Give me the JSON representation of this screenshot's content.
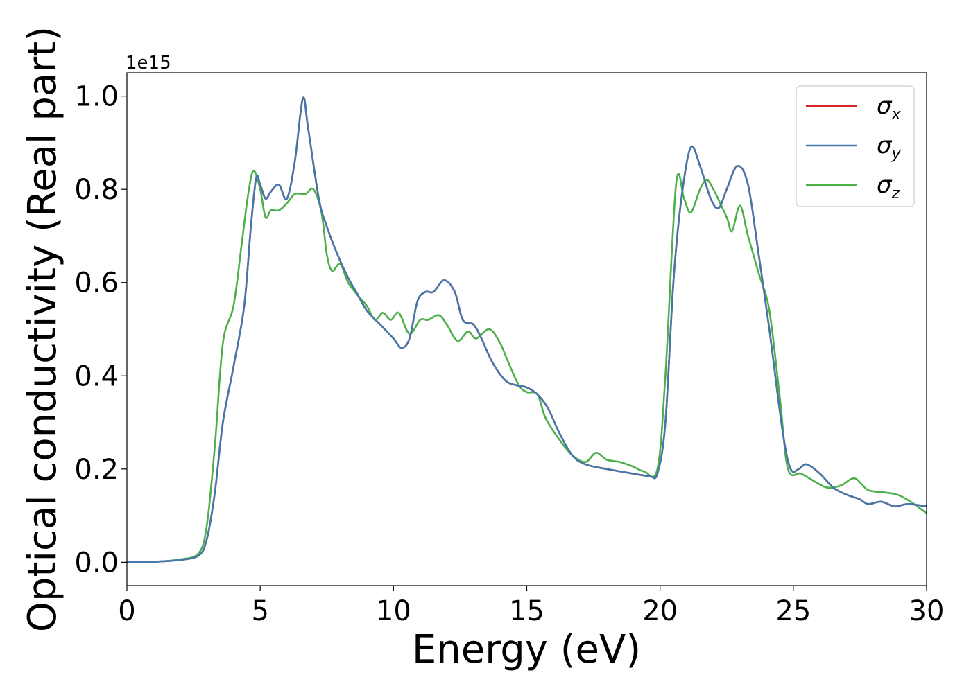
{
  "chart_data": {
    "type": "line",
    "title": "",
    "xlabel": "Energy (eV)",
    "ylabel": "Optical conductivity (Real part)",
    "y_offset_label": "1e15",
    "xlim": [
      0,
      30
    ],
    "ylim": [
      -0.05,
      1.05
    ],
    "x_ticks": [
      0,
      5,
      10,
      15,
      20,
      25,
      30
    ],
    "y_ticks": [
      0.0,
      0.2,
      0.4,
      0.6,
      0.8,
      1.0
    ],
    "x_tick_labels": [
      "0",
      "5",
      "10",
      "15",
      "20",
      "25",
      "30"
    ],
    "y_tick_labels": [
      "0.0",
      "0.2",
      "0.4",
      "0.6",
      "0.8",
      "1.0"
    ],
    "grid": false,
    "legend_position": "top-right",
    "colors": {
      "sigma_x": "#d62728",
      "sigma_y": "#4477aa",
      "sigma_z": "#4daf4a"
    },
    "series": [
      {
        "name": "σx",
        "symbol": "σ",
        "subscript": "x",
        "color": "#d62728",
        "points": [
          [
            0,
            0
          ],
          [
            1,
            0.001
          ],
          [
            2,
            0.005
          ],
          [
            2.7,
            0.015
          ],
          [
            3.0,
            0.05
          ],
          [
            3.3,
            0.15
          ],
          [
            3.6,
            0.3
          ],
          [
            4.0,
            0.42
          ],
          [
            4.4,
            0.55
          ],
          [
            4.65,
            0.72
          ],
          [
            4.85,
            0.825
          ],
          [
            5.0,
            0.81
          ],
          [
            5.2,
            0.78
          ],
          [
            5.4,
            0.795
          ],
          [
            5.7,
            0.81
          ],
          [
            6.0,
            0.78
          ],
          [
            6.3,
            0.86
          ],
          [
            6.6,
            0.995
          ],
          [
            6.8,
            0.93
          ],
          [
            7.2,
            0.78
          ],
          [
            7.5,
            0.72
          ],
          [
            7.9,
            0.66
          ],
          [
            8.3,
            0.61
          ],
          [
            8.6,
            0.58
          ],
          [
            9.0,
            0.54
          ],
          [
            9.5,
            0.51
          ],
          [
            10.0,
            0.48
          ],
          [
            10.3,
            0.46
          ],
          [
            10.6,
            0.48
          ],
          [
            10.9,
            0.56
          ],
          [
            11.2,
            0.58
          ],
          [
            11.5,
            0.58
          ],
          [
            11.9,
            0.605
          ],
          [
            12.3,
            0.58
          ],
          [
            12.6,
            0.52
          ],
          [
            13.0,
            0.51
          ],
          [
            13.3,
            0.48
          ],
          [
            13.7,
            0.43
          ],
          [
            14.2,
            0.39
          ],
          [
            14.6,
            0.38
          ],
          [
            15.0,
            0.375
          ],
          [
            15.4,
            0.36
          ],
          [
            15.8,
            0.33
          ],
          [
            16.2,
            0.28
          ],
          [
            16.7,
            0.23
          ],
          [
            17.2,
            0.21
          ],
          [
            18.0,
            0.2
          ],
          [
            19.0,
            0.19
          ],
          [
            19.6,
            0.185
          ],
          [
            19.9,
            0.19
          ],
          [
            20.2,
            0.3
          ],
          [
            20.5,
            0.6
          ],
          [
            20.8,
            0.78
          ],
          [
            21.15,
            0.89
          ],
          [
            21.5,
            0.85
          ],
          [
            21.9,
            0.78
          ],
          [
            22.2,
            0.76
          ],
          [
            22.5,
            0.8
          ],
          [
            22.9,
            0.85
          ],
          [
            23.3,
            0.81
          ],
          [
            23.7,
            0.66
          ],
          [
            24.1,
            0.5
          ],
          [
            24.6,
            0.28
          ],
          [
            24.9,
            0.2
          ],
          [
            25.2,
            0.2
          ],
          [
            25.5,
            0.21
          ],
          [
            26.0,
            0.19
          ],
          [
            26.5,
            0.16
          ],
          [
            27.0,
            0.145
          ],
          [
            27.5,
            0.135
          ],
          [
            27.8,
            0.125
          ],
          [
            28.3,
            0.13
          ],
          [
            28.8,
            0.12
          ],
          [
            29.3,
            0.125
          ],
          [
            30.0,
            0.12
          ]
        ]
      },
      {
        "name": "σy",
        "symbol": "σ",
        "subscript": "y",
        "color": "#4477aa",
        "points": [
          [
            0,
            0
          ],
          [
            1,
            0.001
          ],
          [
            2,
            0.005
          ],
          [
            2.7,
            0.015
          ],
          [
            3.0,
            0.05
          ],
          [
            3.3,
            0.15
          ],
          [
            3.6,
            0.3
          ],
          [
            4.0,
            0.42
          ],
          [
            4.4,
            0.55
          ],
          [
            4.65,
            0.72
          ],
          [
            4.85,
            0.825
          ],
          [
            5.0,
            0.81
          ],
          [
            5.2,
            0.78
          ],
          [
            5.4,
            0.795
          ],
          [
            5.7,
            0.81
          ],
          [
            6.0,
            0.78
          ],
          [
            6.3,
            0.86
          ],
          [
            6.6,
            0.995
          ],
          [
            6.8,
            0.93
          ],
          [
            7.2,
            0.78
          ],
          [
            7.5,
            0.72
          ],
          [
            7.9,
            0.66
          ],
          [
            8.3,
            0.61
          ],
          [
            8.6,
            0.58
          ],
          [
            9.0,
            0.54
          ],
          [
            9.5,
            0.51
          ],
          [
            10.0,
            0.48
          ],
          [
            10.3,
            0.46
          ],
          [
            10.6,
            0.48
          ],
          [
            10.9,
            0.56
          ],
          [
            11.2,
            0.58
          ],
          [
            11.5,
            0.58
          ],
          [
            11.9,
            0.605
          ],
          [
            12.3,
            0.58
          ],
          [
            12.6,
            0.52
          ],
          [
            13.0,
            0.51
          ],
          [
            13.3,
            0.48
          ],
          [
            13.7,
            0.43
          ],
          [
            14.2,
            0.39
          ],
          [
            14.6,
            0.38
          ],
          [
            15.0,
            0.375
          ],
          [
            15.4,
            0.36
          ],
          [
            15.8,
            0.33
          ],
          [
            16.2,
            0.28
          ],
          [
            16.7,
            0.23
          ],
          [
            17.2,
            0.21
          ],
          [
            18.0,
            0.2
          ],
          [
            19.0,
            0.19
          ],
          [
            19.6,
            0.185
          ],
          [
            19.9,
            0.19
          ],
          [
            20.2,
            0.3
          ],
          [
            20.5,
            0.6
          ],
          [
            20.8,
            0.78
          ],
          [
            21.15,
            0.89
          ],
          [
            21.5,
            0.85
          ],
          [
            21.9,
            0.78
          ],
          [
            22.2,
            0.76
          ],
          [
            22.5,
            0.8
          ],
          [
            22.9,
            0.85
          ],
          [
            23.3,
            0.81
          ],
          [
            23.7,
            0.66
          ],
          [
            24.1,
            0.5
          ],
          [
            24.6,
            0.28
          ],
          [
            24.9,
            0.2
          ],
          [
            25.2,
            0.2
          ],
          [
            25.5,
            0.21
          ],
          [
            26.0,
            0.19
          ],
          [
            26.5,
            0.16
          ],
          [
            27.0,
            0.145
          ],
          [
            27.5,
            0.135
          ],
          [
            27.8,
            0.125
          ],
          [
            28.3,
            0.13
          ],
          [
            28.8,
            0.12
          ],
          [
            29.3,
            0.125
          ],
          [
            30.0,
            0.12
          ]
        ]
      },
      {
        "name": "σz",
        "symbol": "σ",
        "subscript": "z",
        "color": "#4daf4a",
        "points": [
          [
            0,
            0
          ],
          [
            1,
            0.001
          ],
          [
            2,
            0.006
          ],
          [
            2.7,
            0.02
          ],
          [
            3.0,
            0.08
          ],
          [
            3.3,
            0.25
          ],
          [
            3.6,
            0.47
          ],
          [
            4.0,
            0.55
          ],
          [
            4.3,
            0.68
          ],
          [
            4.55,
            0.79
          ],
          [
            4.75,
            0.84
          ],
          [
            5.0,
            0.8
          ],
          [
            5.2,
            0.74
          ],
          [
            5.4,
            0.755
          ],
          [
            5.7,
            0.755
          ],
          [
            6.0,
            0.77
          ],
          [
            6.3,
            0.79
          ],
          [
            6.7,
            0.79
          ],
          [
            7.0,
            0.8
          ],
          [
            7.3,
            0.75
          ],
          [
            7.5,
            0.66
          ],
          [
            7.7,
            0.625
          ],
          [
            8.0,
            0.64
          ],
          [
            8.3,
            0.6
          ],
          [
            8.7,
            0.57
          ],
          [
            9.0,
            0.55
          ],
          [
            9.3,
            0.52
          ],
          [
            9.6,
            0.535
          ],
          [
            9.9,
            0.52
          ],
          [
            10.2,
            0.535
          ],
          [
            10.6,
            0.49
          ],
          [
            11.0,
            0.52
          ],
          [
            11.3,
            0.52
          ],
          [
            11.7,
            0.53
          ],
          [
            12.0,
            0.51
          ],
          [
            12.4,
            0.475
          ],
          [
            12.8,
            0.495
          ],
          [
            13.1,
            0.48
          ],
          [
            13.6,
            0.5
          ],
          [
            14.0,
            0.47
          ],
          [
            14.3,
            0.43
          ],
          [
            14.7,
            0.38
          ],
          [
            15.0,
            0.365
          ],
          [
            15.4,
            0.36
          ],
          [
            15.7,
            0.31
          ],
          [
            16.2,
            0.265
          ],
          [
            16.7,
            0.23
          ],
          [
            17.2,
            0.215
          ],
          [
            17.6,
            0.235
          ],
          [
            18.0,
            0.22
          ],
          [
            18.5,
            0.215
          ],
          [
            19.0,
            0.205
          ],
          [
            19.4,
            0.195
          ],
          [
            19.9,
            0.2
          ],
          [
            20.2,
            0.4
          ],
          [
            20.6,
            0.81
          ],
          [
            20.9,
            0.78
          ],
          [
            21.15,
            0.75
          ],
          [
            21.5,
            0.8
          ],
          [
            21.75,
            0.82
          ],
          [
            22.0,
            0.8
          ],
          [
            22.5,
            0.74
          ],
          [
            22.7,
            0.71
          ],
          [
            23.0,
            0.765
          ],
          [
            23.3,
            0.7
          ],
          [
            23.7,
            0.62
          ],
          [
            24.1,
            0.54
          ],
          [
            24.5,
            0.35
          ],
          [
            24.8,
            0.2
          ],
          [
            25.3,
            0.19
          ],
          [
            25.9,
            0.17
          ],
          [
            26.3,
            0.16
          ],
          [
            26.8,
            0.165
          ],
          [
            27.3,
            0.18
          ],
          [
            27.8,
            0.155
          ],
          [
            28.4,
            0.15
          ],
          [
            28.9,
            0.145
          ],
          [
            29.4,
            0.13
          ],
          [
            30.0,
            0.105
          ]
        ]
      }
    ]
  }
}
